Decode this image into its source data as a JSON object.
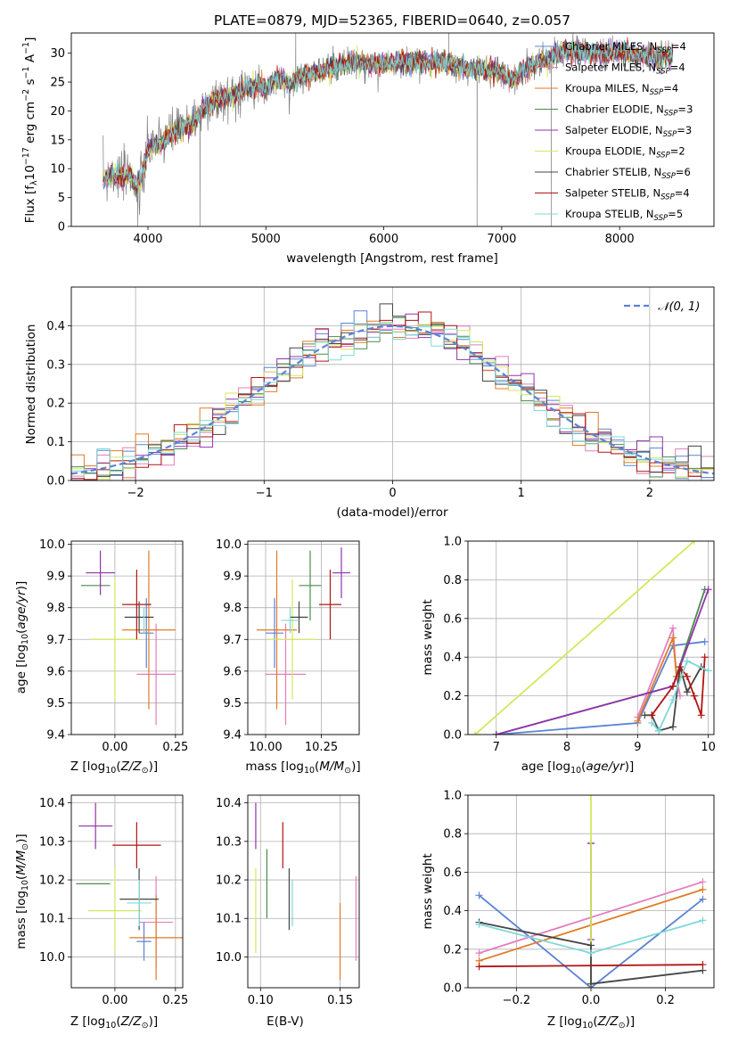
{
  "colors": {
    "Chabrier MILES": "#5b83d6",
    "Salpeter MILES": "#e27fbe",
    "Kroupa MILES": "#e07b25",
    "Chabrier ELODIE": "#4d8a4d",
    "Salpeter ELODIE": "#9233ae",
    "Kroupa ELODIE": "#d2e85c",
    "Chabrier STELIB": "#454545",
    "Salpeter STELIB": "#b31313",
    "Kroupa STELIB": "#7dd8da"
  },
  "chart_data": [
    {
      "id": "spectrum",
      "type": "line",
      "title": "PLATE=0879, MJD=52365, FIBERID=0640, z=0.057",
      "xlabel": "wavelength [Angstrom, rest frame]",
      "ylabel": "Flux [f_λ10^-17 erg cm^-2 s^-1 A^-1]",
      "xlim": [
        3350,
        8800
      ],
      "ylim": [
        0,
        33.5
      ],
      "xticks": [
        "4000",
        "5000",
        "6000",
        "7000",
        "8000"
      ],
      "yticks": [
        "0",
        "5",
        "10",
        "15",
        "20",
        "25",
        "30"
      ],
      "grid": false,
      "legend_placement": "top-right",
      "legend": [
        {
          "model": "Chabrier MILES",
          "nssp": "4"
        },
        {
          "model": "Salpeter MILES",
          "nssp": "4"
        },
        {
          "model": "Kroupa MILES",
          "nssp": "4"
        },
        {
          "model": "Chabrier ELODIE",
          "nssp": "3"
        },
        {
          "model": "Salpeter ELODIE",
          "nssp": "3"
        },
        {
          "model": "Kroupa ELODIE",
          "nssp": "2"
        },
        {
          "model": "Chabrier STELIB",
          "nssp": "6"
        },
        {
          "model": "Salpeter STELIB",
          "nssp": "4"
        },
        {
          "model": "Kroupa STELIB",
          "nssp": "5"
        }
      ],
      "model_range": [
        3620,
        8450
      ],
      "spectrum_shape": [
        [
          3620,
          8
        ],
        [
          3700,
          9
        ],
        [
          3780,
          8.5
        ],
        [
          3850,
          9
        ],
        [
          3900,
          7
        ],
        [
          3950,
          9
        ],
        [
          4000,
          13
        ],
        [
          4050,
          14.5
        ],
        [
          4100,
          14
        ],
        [
          4200,
          16
        ],
        [
          4300,
          17
        ],
        [
          4400,
          18.5
        ],
        [
          4500,
          21
        ],
        [
          4600,
          22
        ],
        [
          4700,
          22.5
        ],
        [
          4800,
          23.5
        ],
        [
          4900,
          24.5
        ],
        [
          5000,
          24
        ],
        [
          5100,
          25.5
        ],
        [
          5200,
          24.5
        ],
        [
          5300,
          26
        ],
        [
          5500,
          27
        ],
        [
          5700,
          28.5
        ],
        [
          5900,
          28
        ],
        [
          6100,
          28.3
        ],
        [
          6300,
          28.5
        ],
        [
          6500,
          28.5
        ],
        [
          6700,
          27.2
        ],
        [
          6900,
          27
        ],
        [
          7000,
          26.5
        ],
        [
          7100,
          25.5
        ],
        [
          7200,
          27.5
        ],
        [
          7400,
          29
        ],
        [
          7500,
          30.5
        ],
        [
          7800,
          30
        ],
        [
          8000,
          30.2
        ],
        [
          8200,
          29.5
        ],
        [
          8450,
          29.5
        ]
      ]
    },
    {
      "id": "residuals",
      "type": "line",
      "xlabel": "(data-model)/error",
      "ylabel": "Normed distribution",
      "xlim": [
        -2.5,
        2.5
      ],
      "ylim": [
        0,
        0.5
      ],
      "xticks": [
        "−2",
        "−1",
        "0",
        "1",
        "2"
      ],
      "yticks": [
        "0.0",
        "0.1",
        "0.2",
        "0.3",
        "0.4"
      ],
      "grid": true,
      "legend_placement": "top-right",
      "legend": [
        "𝒩(0, 1)"
      ],
      "bin_width": 0.1,
      "reference_curve": {
        "name": "𝒩(0, 1)",
        "mean": 0,
        "sigma": 1
      }
    },
    {
      "id": "age_vs_Z",
      "type": "scatter",
      "xlabel": "Z [log10(Z/Z⊙)]",
      "ylabel": "age  [log10(age/yr)]",
      "xlim": [
        -0.18,
        0.28
      ],
      "ylim": [
        9.4,
        10.01
      ],
      "xticks": [
        "0.00",
        "0.25"
      ],
      "yticks": [
        "9.4",
        "9.5",
        "9.6",
        "9.7",
        "9.8",
        "9.9",
        "10.0"
      ],
      "grid": true,
      "points": [
        {
          "model": "Chabrier MILES",
          "x": 0.13,
          "xerr": 0.03,
          "y": 9.72,
          "yerr": 0.11
        },
        {
          "model": "Salpeter MILES",
          "x": 0.17,
          "xerr": 0.08,
          "y": 9.59,
          "yerr": 0.16
        },
        {
          "model": "Kroupa MILES",
          "x": 0.14,
          "xerr": 0.11,
          "y": 9.73,
          "yerr": 0.25
        },
        {
          "model": "Chabrier ELODIE",
          "x": -0.08,
          "xerr": 0.06,
          "y": 9.87,
          "yerr": 0.0
        },
        {
          "model": "Salpeter ELODIE",
          "x": -0.06,
          "xerr": 0.06,
          "y": 9.91,
          "yerr": 0.07
        },
        {
          "model": "Kroupa ELODIE",
          "x": 0.0,
          "xerr": 0.1,
          "y": 9.7,
          "yerr": 0.19
        },
        {
          "model": "Chabrier STELIB",
          "x": 0.1,
          "xerr": 0.06,
          "y": 9.77,
          "yerr": 0.05
        },
        {
          "model": "Salpeter STELIB",
          "x": 0.09,
          "xerr": 0.06,
          "y": 9.81,
          "yerr": 0.11
        },
        {
          "model": "Kroupa STELIB",
          "x": 0.12,
          "xerr": 0.0,
          "y": 9.76,
          "yerr": 0.04
        }
      ]
    },
    {
      "id": "age_vs_mass",
      "type": "scatter",
      "xlabel": "mass [log10(M/M⊙)]",
      "ylabel": "",
      "xlim": [
        9.92,
        10.42
      ],
      "ylim": [
        9.4,
        10.01
      ],
      "xticks": [
        "10.00",
        "10.25"
      ],
      "yticks": [
        "9.4",
        "9.5",
        "9.6",
        "9.7",
        "9.8",
        "9.9",
        "10.0"
      ],
      "grid": true,
      "points": [
        {
          "model": "Chabrier MILES",
          "x": 10.04,
          "xerr": 0.04,
          "y": 9.72,
          "yerr": 0.11
        },
        {
          "model": "Salpeter MILES",
          "x": 10.09,
          "xerr": 0.09,
          "y": 9.59,
          "yerr": 0.16
        },
        {
          "model": "Kroupa MILES",
          "x": 10.05,
          "xerr": 0.09,
          "y": 9.73,
          "yerr": 0.25
        },
        {
          "model": "Chabrier ELODIE",
          "x": 10.2,
          "xerr": 0.05,
          "y": 9.87,
          "yerr": 0.11
        },
        {
          "model": "Salpeter ELODIE",
          "x": 10.34,
          "xerr": 0.04,
          "y": 9.91,
          "yerr": 0.08
        },
        {
          "model": "Kroupa ELODIE",
          "x": 10.12,
          "xerr": 0.11,
          "y": 9.7,
          "yerr": 0.19
        },
        {
          "model": "Chabrier STELIB",
          "x": 10.15,
          "xerr": 0.04,
          "y": 9.77,
          "yerr": 0.05
        },
        {
          "model": "Salpeter STELIB",
          "x": 10.29,
          "xerr": 0.05,
          "y": 9.81,
          "yerr": 0.11
        },
        {
          "model": "Kroupa STELIB",
          "x": 10.11,
          "xerr": 0.04,
          "y": 9.76,
          "yerr": 0.04
        }
      ]
    },
    {
      "id": "mass_weight_vs_age",
      "type": "line",
      "xlabel": "age  [log10(age/yr)]",
      "ylabel": "mass weight",
      "xlim": [
        6.6,
        10.08
      ],
      "ylim": [
        0,
        1
      ],
      "xticks": [
        "7",
        "8",
        "9",
        "10"
      ],
      "yticks": [
        "0.0",
        "0.2",
        "0.4",
        "0.6",
        "0.8",
        "1.0"
      ],
      "grid": true,
      "series": [
        {
          "model": "Chabrier MILES",
          "points": [
            [
              7.0,
              0.0
            ],
            [
              9.0,
              0.06
            ],
            [
              9.5,
              0.46
            ],
            [
              9.95,
              0.48
            ]
          ]
        },
        {
          "model": "Salpeter MILES",
          "points": [
            [
              9.0,
              0.09
            ],
            [
              9.5,
              0.55
            ],
            [
              9.55,
              0.3
            ],
            [
              9.6,
              0.2
            ]
          ]
        },
        {
          "model": "Kroupa MILES",
          "points": [
            [
              9.0,
              0.07
            ],
            [
              9.5,
              0.5
            ],
            [
              9.55,
              0.3
            ],
            [
              9.6,
              0.3
            ]
          ]
        },
        {
          "model": "Chabrier ELODIE",
          "points": [
            [
              7.0,
              0.0
            ],
            [
              9.5,
              0.25
            ],
            [
              9.95,
              0.75
            ]
          ]
        },
        {
          "model": "Salpeter ELODIE",
          "points": [
            [
              7.0,
              0.0
            ],
            [
              9.5,
              0.25
            ],
            [
              10.0,
              0.75
            ]
          ]
        },
        {
          "model": "Kroupa ELODIE",
          "points": [
            [
              6.7,
              0.0
            ],
            [
              9.8,
              1.0
            ]
          ]
        },
        {
          "model": "Chabrier STELIB",
          "points": [
            [
              9.1,
              0.1
            ],
            [
              9.2,
              0.1
            ],
            [
              9.3,
              0.02
            ],
            [
              9.5,
              0.04
            ],
            [
              9.6,
              0.35
            ],
            [
              9.7,
              0.22
            ],
            [
              9.9,
              0.35
            ]
          ]
        },
        {
          "model": "Salpeter STELIB",
          "points": [
            [
              9.2,
              0.1
            ],
            [
              9.5,
              0.25
            ],
            [
              9.6,
              0.35
            ],
            [
              9.7,
              0.3
            ],
            [
              9.8,
              0.2
            ],
            [
              9.9,
              0.1
            ],
            [
              9.95,
              0.4
            ]
          ]
        },
        {
          "model": "Kroupa STELIB",
          "points": [
            [
              9.2,
              0.06
            ],
            [
              9.3,
              0.02
            ],
            [
              9.5,
              0.18
            ],
            [
              9.7,
              0.38
            ],
            [
              10.0,
              0.33
            ]
          ]
        }
      ]
    },
    {
      "id": "mass_vs_Z",
      "type": "scatter",
      "xlabel": "Z [log10(Z/Z⊙)]",
      "ylabel": "mass [log10(M/M⊙)]",
      "xlim": [
        -0.18,
        0.28
      ],
      "ylim": [
        9.92,
        10.42
      ],
      "xticks": [
        "0.00",
        "0.25"
      ],
      "yticks": [
        "10.0",
        "10.1",
        "10.2",
        "10.3",
        "10.4"
      ],
      "grid": true,
      "points": [
        {
          "model": "Chabrier MILES",
          "x": 0.12,
          "xerr": 0.03,
          "y": 10.04,
          "yerr": 0.05
        },
        {
          "model": "Salpeter MILES",
          "x": 0.17,
          "xerr": 0.07,
          "y": 10.09,
          "yerr": 0.12
        },
        {
          "model": "Kroupa MILES",
          "x": 0.17,
          "xerr": 0.11,
          "y": 10.05,
          "yerr": 0.11
        },
        {
          "model": "Chabrier ELODIE",
          "x": -0.09,
          "xerr": 0.07,
          "y": 10.19,
          "yerr": 0.0
        },
        {
          "model": "Salpeter ELODIE",
          "x": -0.08,
          "xerr": 0.07,
          "y": 10.34,
          "yerr": 0.06
        },
        {
          "model": "Kroupa ELODIE",
          "x": 0.0,
          "xerr": 0.11,
          "y": 10.12,
          "yerr": 0.11
        },
        {
          "model": "Chabrier STELIB",
          "x": 0.1,
          "xerr": 0.08,
          "y": 10.15,
          "yerr": 0.08
        },
        {
          "model": "Salpeter STELIB",
          "x": 0.09,
          "xerr": 0.1,
          "y": 10.29,
          "yerr": 0.06
        },
        {
          "model": "Kroupa STELIB",
          "x": 0.1,
          "xerr": 0.05,
          "y": 10.14,
          "yerr": 0.06
        }
      ]
    },
    {
      "id": "mass_vs_ebv",
      "type": "scatter",
      "xlabel": "E(B-V)",
      "ylabel": "",
      "xlim": [
        0.092,
        0.162
      ],
      "ylim": [
        9.92,
        10.42
      ],
      "xticks": [
        "0.10",
        "0.15"
      ],
      "yticks": [
        "10.0",
        "10.1",
        "10.2",
        "10.3",
        "10.4"
      ],
      "grid": true,
      "points": [
        {
          "model": "Salpeter ELODIE",
          "x": 0.097,
          "y": 10.34,
          "yerr": 0.06
        },
        {
          "model": "Kroupa ELODIE",
          "x": 0.097,
          "y": 10.12,
          "yerr": 0.11
        },
        {
          "model": "Chabrier ELODIE",
          "x": 0.104,
          "y": 10.19,
          "yerr": 0.09
        },
        {
          "model": "Salpeter STELIB",
          "x": 0.114,
          "y": 10.29,
          "yerr": 0.06
        },
        {
          "model": "Chabrier STELIB",
          "x": 0.118,
          "y": 10.15,
          "yerr": 0.08
        },
        {
          "model": "Kroupa STELIB",
          "x": 0.12,
          "y": 10.14,
          "yerr": 0.06
        },
        {
          "model": "Kroupa MILES",
          "x": 0.15,
          "y": 10.04,
          "yerr": 0.1
        },
        {
          "model": "Salpeter MILES",
          "x": 0.16,
          "y": 10.1,
          "yerr": 0.11
        }
      ]
    },
    {
      "id": "mass_weight_vs_Z",
      "type": "line",
      "xlabel": "Z [log10(Z/Z⊙)]",
      "ylabel": "mass weight",
      "xlim": [
        -0.33,
        0.33
      ],
      "ylim": [
        0,
        1
      ],
      "xticks": [
        "−0.2",
        "0.0",
        "0.2"
      ],
      "yticks": [
        "0.0",
        "0.2",
        "0.4",
        "0.6",
        "0.8",
        "1.0"
      ],
      "grid": true,
      "series": [
        {
          "model": "Chabrier MILES",
          "points": [
            [
              -0.3,
              0.48
            ],
            [
              0.0,
              0.0
            ],
            [
              0.3,
              0.46
            ]
          ]
        },
        {
          "model": "Salpeter MILES",
          "points": [
            [
              -0.3,
              0.18
            ],
            [
              0.3,
              0.55
            ]
          ]
        },
        {
          "model": "Kroupa MILES",
          "points": [
            [
              -0.3,
              0.14
            ],
            [
              0.3,
              0.51
            ]
          ]
        },
        {
          "model": "Chabrier ELODIE",
          "points": [
            [
              0.0,
              0.0
            ],
            [
              0.0,
              0.75
            ]
          ]
        },
        {
          "model": "Salpeter ELODIE",
          "points": [
            [
              0.0,
              0.25
            ],
            [
              0.0,
              0.75
            ]
          ]
        },
        {
          "model": "Kroupa ELODIE",
          "points": [
            [
              0.0,
              0.0
            ],
            [
              0.0,
              1.0
            ]
          ]
        },
        {
          "model": "Chabrier STELIB",
          "points": [
            [
              -0.3,
              0.34
            ],
            [
              0.0,
              0.22
            ],
            [
              0.0,
              0.02
            ],
            [
              0.3,
              0.09
            ]
          ]
        },
        {
          "model": "Salpeter STELIB",
          "points": [
            [
              -0.3,
              0.11
            ],
            [
              0.3,
              0.12
            ]
          ]
        },
        {
          "model": "Kroupa STELIB",
          "points": [
            [
              -0.3,
              0.33
            ],
            [
              0.0,
              0.18
            ],
            [
              0.3,
              0.35
            ]
          ]
        }
      ]
    }
  ]
}
